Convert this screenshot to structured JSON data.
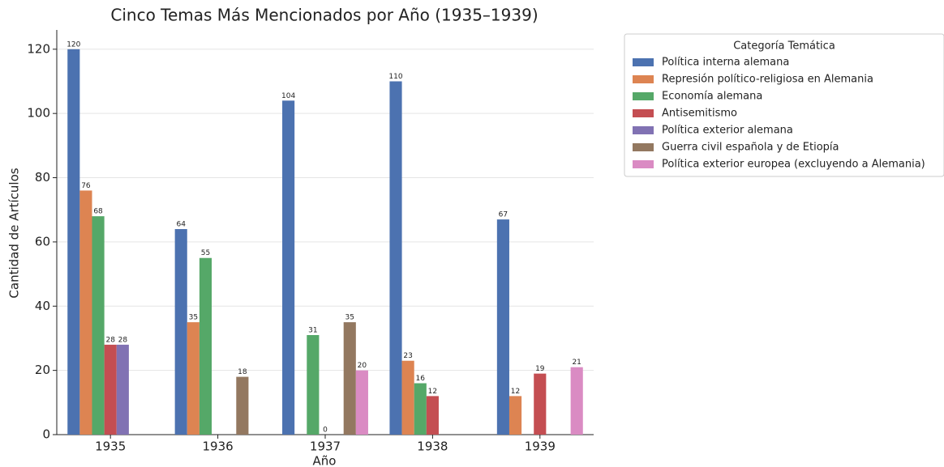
{
  "chart_data": {
    "type": "bar",
    "title": "Cinco Temas Más Mencionados por Año (1935–1939)",
    "x_label": "Año",
    "y_label": "Cantidad de Artículos",
    "legend_title": "Categoría Temática",
    "legend_position": "outside upper right",
    "categories": [
      "1935",
      "1936",
      "1937",
      "1938",
      "1939"
    ],
    "series": [
      {
        "name": "Política interna alemana",
        "color": "#4c72b0",
        "values": [
          120,
          64,
          104,
          110,
          67
        ]
      },
      {
        "name": "Represión político-religiosa en Alemania",
        "color": "#dd8452",
        "values": [
          76,
          35,
          null,
          23,
          12
        ]
      },
      {
        "name": "Economía alemana",
        "color": "#55a868",
        "values": [
          68,
          55,
          31,
          16,
          null
        ]
      },
      {
        "name": "Antisemitismo",
        "color": "#c44e52",
        "values": [
          28,
          null,
          0,
          12,
          19
        ]
      },
      {
        "name": "Política exterior alemana",
        "color": "#8172b3",
        "values": [
          28,
          null,
          null,
          null,
          null
        ]
      },
      {
        "name": "Guerra civil española y de Etiopía",
        "color": "#937860",
        "values": [
          null,
          18,
          35,
          null,
          null
        ]
      },
      {
        "name": "Política exterior europea (excluyendo a Alemania)",
        "color": "#da8bc3",
        "values": [
          null,
          null,
          20,
          null,
          21
        ]
      }
    ],
    "ylim": [
      0,
      126
    ],
    "yticks": [
      0,
      20,
      40,
      60,
      80,
      100,
      120
    ],
    "grid": true
  }
}
